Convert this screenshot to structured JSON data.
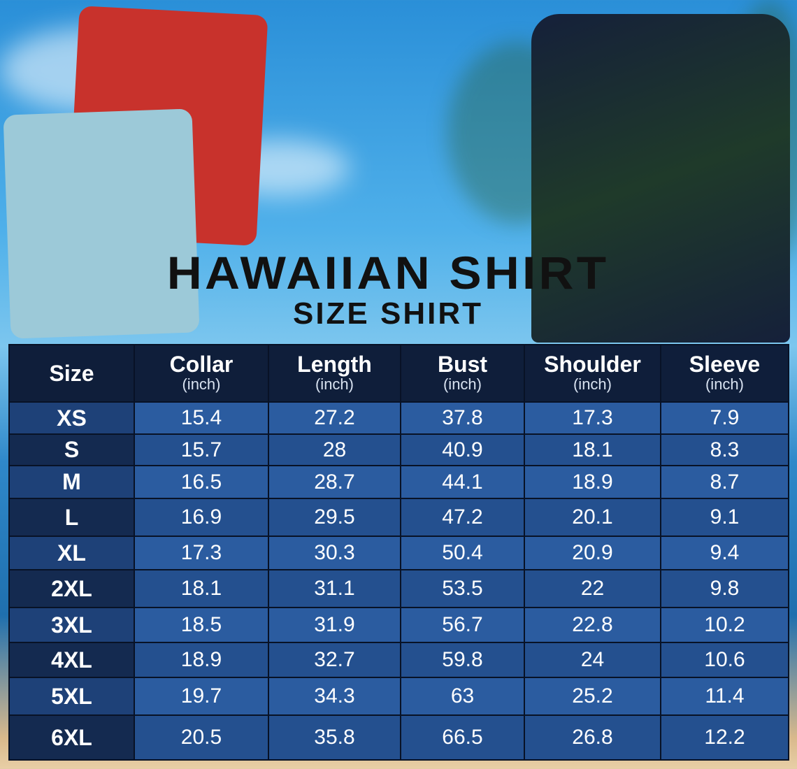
{
  "title": "HAWAIIAN SHIRT",
  "subtitle": "SIZE SHIRT",
  "colors": {
    "header_bg": "#0f1e3a",
    "cell_light": "#2b5ca0",
    "cell_dark": "#24508f",
    "size_col": "#142a50",
    "title": "#111111"
  },
  "table": {
    "headers": [
      {
        "label": "Size",
        "unit": ""
      },
      {
        "label": "Collar",
        "unit": "(inch)"
      },
      {
        "label": "Length",
        "unit": "(inch)"
      },
      {
        "label": "Bust",
        "unit": "(inch)"
      },
      {
        "label": "Shoulder",
        "unit": "(inch)"
      },
      {
        "label": "Sleeve",
        "unit": "(inch)"
      }
    ],
    "rows": [
      [
        "XS",
        "15.4",
        "27.2",
        "37.8",
        "17.3",
        "7.9"
      ],
      [
        "S",
        "15.7",
        "28",
        "40.9",
        "18.1",
        "8.3"
      ],
      [
        "M",
        "16.5",
        "28.7",
        "44.1",
        "18.9",
        "8.7"
      ],
      [
        "L",
        "16.9",
        "29.5",
        "47.2",
        "20.1",
        "9.1"
      ],
      [
        "XL",
        "17.3",
        "30.3",
        "50.4",
        "20.9",
        "9.4"
      ],
      [
        "2XL",
        "18.1",
        "31.1",
        "53.5",
        "22",
        "9.8"
      ],
      [
        "3XL",
        "18.5",
        "31.9",
        "56.7",
        "22.8",
        "10.2"
      ],
      [
        "4XL",
        "18.9",
        "32.7",
        "59.8",
        "24",
        "10.6"
      ],
      [
        "5XL",
        "19.7",
        "34.3",
        "63",
        "25.2",
        "11.4"
      ],
      [
        "6XL",
        "20.5",
        "35.8",
        "66.5",
        "26.8",
        "12.2"
      ]
    ]
  }
}
